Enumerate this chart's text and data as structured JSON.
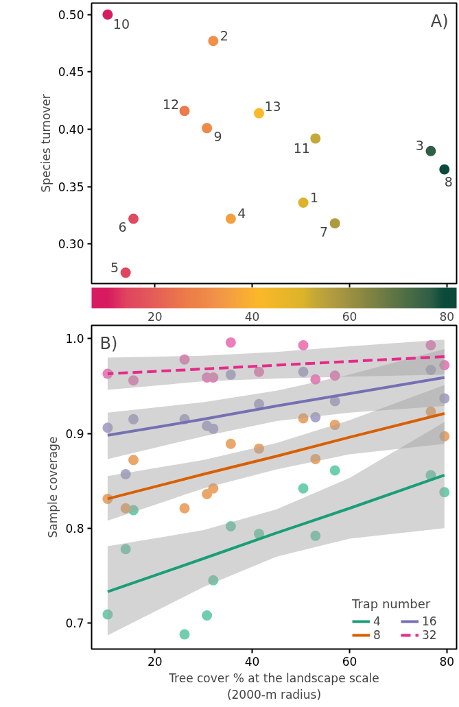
{
  "chart_data": [
    {
      "type": "scatter",
      "ylabel": "Species turnover",
      "x": [
        50.5,
        32.0,
        76.7,
        35.6,
        14.0,
        15.6,
        57.0,
        79.5,
        30.7,
        10.3,
        53.0,
        26.1,
        41.4
      ],
      "values": [
        0.336,
        0.477,
        0.381,
        0.322,
        0.275,
        0.322,
        0.318,
        0.365,
        0.401,
        0.5,
        0.392,
        0.416,
        0.414
      ],
      "cvalues": [
        50.5,
        32.0,
        76.7,
        35.6,
        14.0,
        15.6,
        57.0,
        79.5,
        30.7,
        10.3,
        53.0,
        26.1,
        41.4
      ],
      "colors": [
        "#dcb32a",
        "#f0904a",
        "#2e5e46",
        "#f4a040",
        "#e0445f",
        "#e04a60",
        "#b09a40",
        "#0b4a3a",
        "#ee8a48",
        "#d81b60",
        "#c4a838",
        "#ec7a4a",
        "#fbb829"
      ],
      "xlim": [
        7,
        82
      ],
      "xticks": [
        {
          "value": 20,
          "label": null
        },
        {
          "value": 40,
          "label": null
        },
        {
          "value": 60,
          "label": null
        },
        {
          "value": 80,
          "label": null
        }
      ],
      "ylim": [
        0.2655,
        0.51
      ],
      "yticks": [
        {
          "value": 0.3,
          "label": "0.30"
        },
        {
          "value": 0.35,
          "label": "0.35"
        },
        {
          "value": 0.4,
          "label": "0.40"
        },
        {
          "value": 0.45,
          "label": "0.45"
        },
        {
          "value": 0.5,
          "label": "0.50"
        }
      ],
      "clim": [
        7,
        82
      ],
      "cticks": [
        20,
        40,
        60,
        80
      ],
      "tick_labels": "y",
      "grid": false,
      "marker": "circle",
      "annotations": [
        "A)",
        {
          "text": "1",
          "x": 50.5,
          "y": 0.336
        },
        {
          "text": "2",
          "x": 32.0,
          "y": 0.477
        },
        {
          "text": "3",
          "x": 76.7,
          "y": 0.381
        },
        {
          "text": "4",
          "x": 35.6,
          "y": 0.322
        },
        {
          "text": "5",
          "x": 14.0,
          "y": 0.275
        },
        {
          "text": "6",
          "x": 15.6,
          "y": 0.322
        },
        {
          "text": "7",
          "x": 57.0,
          "y": 0.318
        },
        {
          "text": "8",
          "x": 79.5,
          "y": 0.365
        },
        {
          "text": "9",
          "x": 30.7,
          "y": 0.401
        },
        {
          "text": "10",
          "x": 10.3,
          "y": 0.5
        },
        {
          "text": "11",
          "x": 53.0,
          "y": 0.392
        },
        {
          "text": "12",
          "x": 26.1,
          "y": 0.416
        },
        {
          "text": "13",
          "x": 41.4,
          "y": 0.414
        }
      ]
    },
    {
      "type": "scatter",
      "ylabel": "Sample coverage",
      "xlabel": "Tree cover % at the landscape scale\n(2000-m radius)",
      "legend_title": "Trap number",
      "legend": "bottom right",
      "grid": false,
      "marker": "circle",
      "xlim": [
        7,
        82
      ],
      "xticks": [
        20,
        40,
        60,
        80
      ],
      "ylim": [
        0.6725,
        1.014
      ],
      "yticks": [
        0.7,
        0.8,
        0.9,
        {
          "value": 1.0,
          "label": "1.0"
        }
      ],
      "x": [
        10.3,
        14.0,
        15.6,
        26.1,
        30.7,
        32.0,
        35.6,
        41.4,
        50.5,
        53.0,
        57.0,
        76.7,
        79.5
      ],
      "annotations": [
        "B)"
      ],
      "series": [
        {
          "type": "scatter",
          "color": "#6fcfad",
          "values": [
            0.709,
            0.778,
            0.819,
            0.688,
            0.708,
            0.745,
            0.802,
            0.794,
            0.842,
            0.792,
            0.861,
            0.856,
            0.838
          ]
        },
        {
          "type": "scatter",
          "color": "#eba66a",
          "values": [
            0.831,
            0.821,
            0.872,
            0.821,
            0.836,
            0.842,
            0.889,
            0.884,
            0.916,
            0.873,
            0.909,
            0.923,
            0.897
          ]
        },
        {
          "type": "scatter",
          "color": "#a9a6cc",
          "values": [
            0.906,
            0.857,
            0.915,
            0.915,
            0.908,
            0.905,
            0.962,
            0.931,
            0.965,
            0.917,
            0.934,
            0.967,
            0.937
          ]
        },
        {
          "type": "scatter",
          "color": "#ec7fba",
          "values": [
            0.963,
            null,
            0.956,
            0.978,
            0.959,
            0.959,
            0.996,
            0.965,
            0.993,
            0.957,
            0.961,
            0.993,
            0.972
          ]
        },
        {
          "type": "line",
          "name": "4",
          "color": "#1b9e77",
          "line_style": "solid",
          "marker": "none",
          "x": [
            10.3,
            30,
            45,
            60,
            79.5
          ],
          "values": [
            0.733,
            0.768,
            0.795,
            0.821,
            0.856
          ],
          "lower": [
            0.687,
            0.738,
            0.77,
            0.789,
            0.8
          ],
          "upper": [
            0.781,
            0.798,
            0.82,
            0.853,
            0.912
          ]
        },
        {
          "type": "line",
          "name": "8",
          "color": "#d95f02",
          "line_style": "solid",
          "marker": "none",
          "x": [
            10.3,
            30,
            45,
            60,
            79.5
          ],
          "values": [
            0.831,
            0.857,
            0.876,
            0.896,
            0.921
          ],
          "lower": [
            0.808,
            0.842,
            0.862,
            0.878,
            0.889
          ],
          "upper": [
            0.855,
            0.872,
            0.89,
            0.914,
            0.951
          ]
        },
        {
          "type": "line",
          "name": "16",
          "color": "#7570b3",
          "line_style": "solid",
          "marker": "none",
          "x": [
            10.3,
            30,
            45,
            60,
            79.5
          ],
          "values": [
            0.898,
            0.915,
            0.929,
            0.942,
            0.959
          ],
          "lower": [
            0.873,
            0.897,
            0.913,
            0.922,
            0.929
          ],
          "upper": [
            0.922,
            0.933,
            0.945,
            0.962,
            0.989
          ]
        },
        {
          "type": "line",
          "name": "32",
          "color": "#e7298a",
          "line_style": "dashed",
          "marker": "none",
          "x": [
            10.3,
            30,
            45,
            60,
            79.5
          ],
          "values": [
            0.963,
            0.968,
            0.972,
            0.976,
            0.981
          ],
          "lower": [
            0.946,
            0.955,
            0.958,
            0.96,
            0.962
          ],
          "upper": [
            0.98,
            0.982,
            0.986,
            0.992,
            0.999
          ]
        }
      ]
    }
  ]
}
